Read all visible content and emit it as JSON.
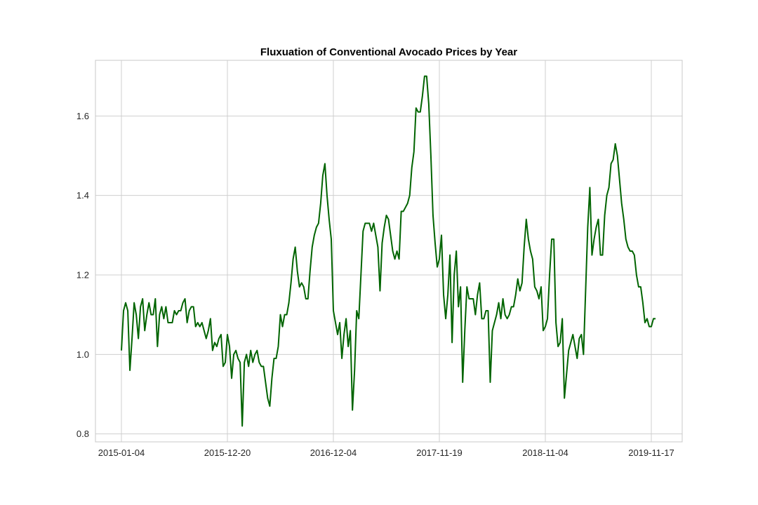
{
  "chart_data": {
    "type": "line",
    "title": "Fluxuation of Conventional Avocado Prices by Year",
    "xlabel": "",
    "ylabel": "",
    "grid": true,
    "legend": "none",
    "ylim": [
      0.78,
      1.74
    ],
    "y_ticks": [
      "0.8",
      "1.0",
      "1.2",
      "1.4",
      "1.6"
    ],
    "x_ticks": [
      "2015-01-04",
      "2015-12-20",
      "2016-12-04",
      "2017-11-19",
      "2018-11-04",
      "2019-11-17"
    ],
    "x_tick_index": [
      0,
      50,
      100,
      150,
      200,
      250
    ],
    "series": [
      {
        "color": "#006400",
        "values": [
          1.01,
          1.11,
          1.13,
          1.11,
          0.96,
          1.04,
          1.13,
          1.1,
          1.04,
          1.12,
          1.14,
          1.06,
          1.1,
          1.13,
          1.1,
          1.1,
          1.14,
          1.02,
          1.1,
          1.12,
          1.09,
          1.12,
          1.08,
          1.08,
          1.08,
          1.11,
          1.1,
          1.11,
          1.11,
          1.13,
          1.14,
          1.08,
          1.11,
          1.12,
          1.12,
          1.07,
          1.08,
          1.07,
          1.08,
          1.06,
          1.04,
          1.06,
          1.09,
          1.01,
          1.03,
          1.02,
          1.04,
          1.05,
          0.97,
          0.98,
          1.05,
          1.02,
          0.94,
          1.0,
          1.01,
          0.99,
          0.98,
          0.82,
          0.98,
          1.0,
          0.97,
          1.01,
          0.98,
          1.0,
          1.01,
          0.98,
          0.97,
          0.97,
          0.93,
          0.89,
          0.87,
          0.94,
          0.99,
          0.99,
          1.02,
          1.1,
          1.07,
          1.1,
          1.1,
          1.13,
          1.18,
          1.24,
          1.27,
          1.21,
          1.17,
          1.18,
          1.17,
          1.14,
          1.14,
          1.21,
          1.27,
          1.3,
          1.32,
          1.33,
          1.38,
          1.45,
          1.48,
          1.4,
          1.34,
          1.29,
          1.11,
          1.08,
          1.05,
          1.08,
          0.99,
          1.05,
          1.09,
          1.02,
          1.06,
          0.86,
          0.96,
          1.11,
          1.09,
          1.2,
          1.31,
          1.33,
          1.33,
          1.33,
          1.31,
          1.33,
          1.3,
          1.27,
          1.16,
          1.28,
          1.32,
          1.35,
          1.34,
          1.3,
          1.26,
          1.24,
          1.26,
          1.24,
          1.36,
          1.36,
          1.37,
          1.38,
          1.4,
          1.47,
          1.51,
          1.62,
          1.61,
          1.61,
          1.65,
          1.7,
          1.7,
          1.63,
          1.5,
          1.35,
          1.28,
          1.22,
          1.24,
          1.3,
          1.15,
          1.09,
          1.15,
          1.25,
          1.03,
          1.2,
          1.26,
          1.12,
          1.17,
          0.93,
          1.06,
          1.17,
          1.14,
          1.14,
          1.14,
          1.1,
          1.15,
          1.18,
          1.09,
          1.09,
          1.11,
          1.11,
          0.93,
          1.06,
          1.08,
          1.1,
          1.13,
          1.09,
          1.14,
          1.1,
          1.09,
          1.1,
          1.12,
          1.12,
          1.15,
          1.19,
          1.16,
          1.18,
          1.27,
          1.34,
          1.29,
          1.26,
          1.24,
          1.17,
          1.16,
          1.14,
          1.17,
          1.06,
          1.07,
          1.09,
          1.2,
          1.29,
          1.29,
          1.08,
          1.02,
          1.03,
          1.09,
          0.89,
          0.95,
          1.01,
          1.03,
          1.05,
          1.02,
          0.99,
          1.04,
          1.05,
          1.0,
          1.16,
          1.32,
          1.42,
          1.25,
          1.29,
          1.32,
          1.34,
          1.25,
          1.25,
          1.35,
          1.4,
          1.42,
          1.48,
          1.49,
          1.53,
          1.5,
          1.44,
          1.38,
          1.34,
          1.29,
          1.27,
          1.26,
          1.26,
          1.25,
          1.2,
          1.17,
          1.17,
          1.13,
          1.08,
          1.09,
          1.07,
          1.07,
          1.09,
          1.09
        ]
      }
    ]
  }
}
